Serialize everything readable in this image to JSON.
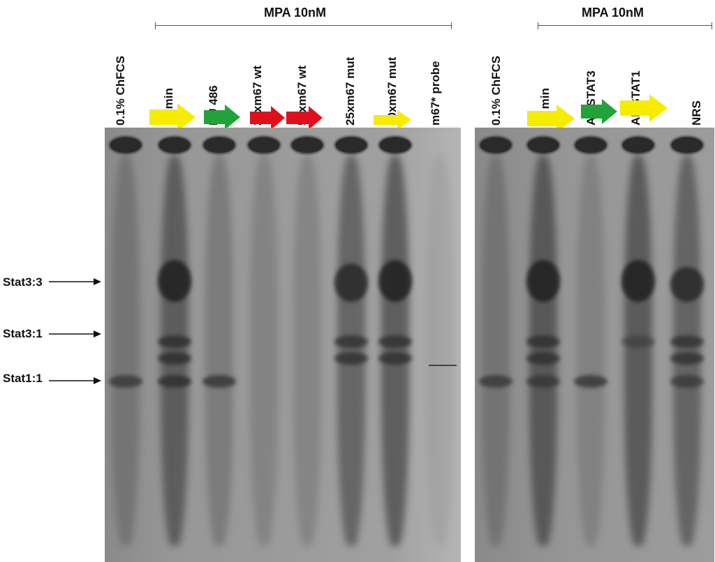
{
  "left_panel": {
    "bracket_label": "MPA 10nM",
    "lanes": [
      {
        "label": "0.1% ChFCS"
      },
      {
        "label": "15 min"
      },
      {
        "label": "RU 486"
      },
      {
        "label": "25xm67 wt"
      },
      {
        "label": "50xm67 wt"
      },
      {
        "label": "25xm67 mut"
      },
      {
        "label": "50xm67 mut"
      },
      {
        "label": "m67* probe"
      }
    ]
  },
  "right_panel": {
    "bracket_label": "MPA 10nM",
    "lanes": [
      {
        "label": "0.1% ChFCS"
      },
      {
        "label": "15 min"
      },
      {
        "label": "Ab STAT3"
      },
      {
        "label": "Ab STAT1"
      },
      {
        "label": "NRS"
      }
    ]
  },
  "band_labels": [
    {
      "label": "Stat3:3"
    },
    {
      "label": "Stat3:1"
    },
    {
      "label": "Stat1:1"
    }
  ],
  "arrow_colors": {
    "yellow": "#f5ec00",
    "green": "#22a33a",
    "red": "#e0101a"
  }
}
